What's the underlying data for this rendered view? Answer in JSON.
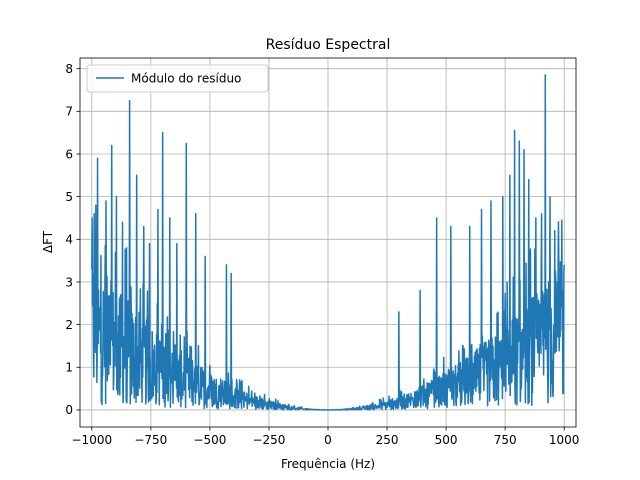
{
  "chart_data": {
    "type": "line",
    "title": "Resíduo Espectral",
    "xlabel": "Frequência (Hz)",
    "ylabel": "ΔFT",
    "xlim": [
      -1050,
      1050
    ],
    "ylim": [
      -0.4,
      8.25
    ],
    "xticks": [
      -1000,
      -750,
      -500,
      -250,
      0,
      250,
      500,
      750,
      1000
    ],
    "xtick_labels": [
      "−1000",
      "−750",
      "−500",
      "−250",
      "0",
      "250",
      "500",
      "750",
      "1000"
    ],
    "yticks": [
      0,
      1,
      2,
      3,
      4,
      5,
      6,
      7,
      8
    ],
    "ytick_labels": [
      "0",
      "1",
      "2",
      "3",
      "4",
      "5",
      "6",
      "7",
      "8"
    ],
    "grid": true,
    "legend_position": "upper-left",
    "series": [
      {
        "name": "Módulo do resíduo",
        "color": "#1f77b4",
        "x_range": [
          -1000,
          1000
        ],
        "envelope_shape": "parabolic, near zero at 0 Hz, about 2.5 mean at ±1000 Hz",
        "peaks": [
          {
            "x": -1000,
            "y": 3.3
          },
          {
            "x": -990,
            "y": 4.6
          },
          {
            "x": -975,
            "y": 5.9
          },
          {
            "x": -940,
            "y": 4.9
          },
          {
            "x": -915,
            "y": 6.2
          },
          {
            "x": -895,
            "y": 5.0
          },
          {
            "x": -870,
            "y": 4.4
          },
          {
            "x": -840,
            "y": 7.25
          },
          {
            "x": -810,
            "y": 5.5
          },
          {
            "x": -780,
            "y": 4.3
          },
          {
            "x": -755,
            "y": 3.9
          },
          {
            "x": -720,
            "y": 4.7
          },
          {
            "x": -700,
            "y": 6.5
          },
          {
            "x": -670,
            "y": 4.5
          },
          {
            "x": -640,
            "y": 3.9
          },
          {
            "x": -600,
            "y": 6.25
          },
          {
            "x": -560,
            "y": 4.6
          },
          {
            "x": -520,
            "y": 3.6
          },
          {
            "x": -430,
            "y": 3.4
          },
          {
            "x": -410,
            "y": 3.2
          },
          {
            "x": 300,
            "y": 2.3
          },
          {
            "x": 390,
            "y": 2.8
          },
          {
            "x": 460,
            "y": 4.5
          },
          {
            "x": 520,
            "y": 4.3
          },
          {
            "x": 600,
            "y": 4.3
          },
          {
            "x": 650,
            "y": 4.7
          },
          {
            "x": 690,
            "y": 4.9
          },
          {
            "x": 740,
            "y": 5.0
          },
          {
            "x": 770,
            "y": 5.5
          },
          {
            "x": 790,
            "y": 6.55
          },
          {
            "x": 810,
            "y": 6.3
          },
          {
            "x": 830,
            "y": 6.1
          },
          {
            "x": 850,
            "y": 5.4
          },
          {
            "x": 880,
            "y": 4.5
          },
          {
            "x": 905,
            "y": 4.6
          },
          {
            "x": 920,
            "y": 7.85
          },
          {
            "x": 940,
            "y": 5.0
          },
          {
            "x": 960,
            "y": 4.2
          },
          {
            "x": 990,
            "y": 4.45
          },
          {
            "x": 1000,
            "y": 3.4
          }
        ]
      }
    ]
  }
}
